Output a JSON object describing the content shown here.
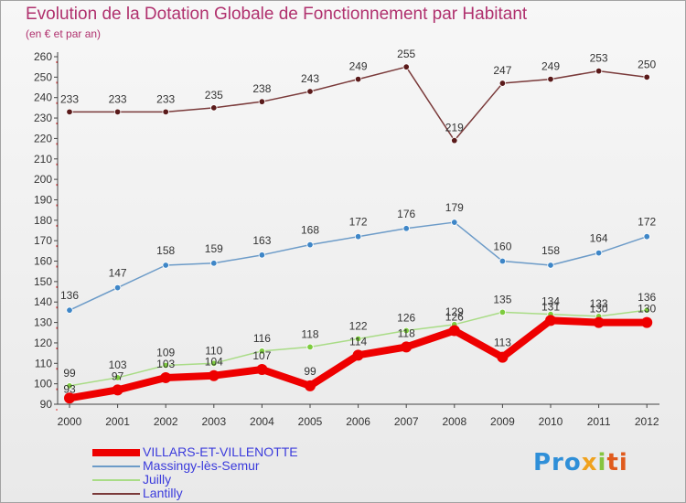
{
  "title": "Evolution de la Dotation Globale de Fonctionnement par Habitant",
  "subtitle": "(en € et par an)",
  "logo": {
    "p1": "Pro",
    "p2": "x",
    "p3": "i",
    "p4": "ti"
  },
  "chart_data": {
    "type": "line",
    "title": "Evolution de la Dotation Globale de Fonctionnement par Habitant",
    "subtitle": "(en € et par an)",
    "xlabel": "",
    "ylabel": "",
    "categories": [
      "2000",
      "2001",
      "2002",
      "2003",
      "2004",
      "2005",
      "2006",
      "2007",
      "2008",
      "2009",
      "2010",
      "2011",
      "2012"
    ],
    "ylim": [
      90,
      260
    ],
    "yticks": [
      90,
      100,
      110,
      120,
      130,
      140,
      150,
      160,
      170,
      180,
      190,
      200,
      210,
      220,
      230,
      240,
      250,
      260
    ],
    "grid": false,
    "legend_position": "bottom-left",
    "series": [
      {
        "name": "VILLARS-ET-VILLENOTTE",
        "color": "#ee0000",
        "marker": "#ee0000",
        "values": [
          93,
          97,
          103,
          104,
          107,
          99,
          114,
          118,
          126,
          113,
          131,
          130,
          130
        ]
      },
      {
        "name": "Massingy-lès-Semur",
        "color": "#6c9bc8",
        "marker": "#3e86c7",
        "values": [
          136,
          147,
          158,
          159,
          163,
          168,
          172,
          176,
          179,
          160,
          158,
          164,
          172
        ]
      },
      {
        "name": "Juilly",
        "color": "#a9dc86",
        "marker": "#7dcb3e",
        "values": [
          99,
          103,
          109,
          110,
          116,
          118,
          122,
          126,
          129,
          135,
          134,
          133,
          136
        ]
      },
      {
        "name": "Lantilly",
        "color": "#7a3a3a",
        "marker": "#5a1a1a",
        "values": [
          233,
          233,
          233,
          235,
          238,
          243,
          249,
          255,
          219,
          247,
          249,
          253,
          250
        ]
      }
    ]
  }
}
